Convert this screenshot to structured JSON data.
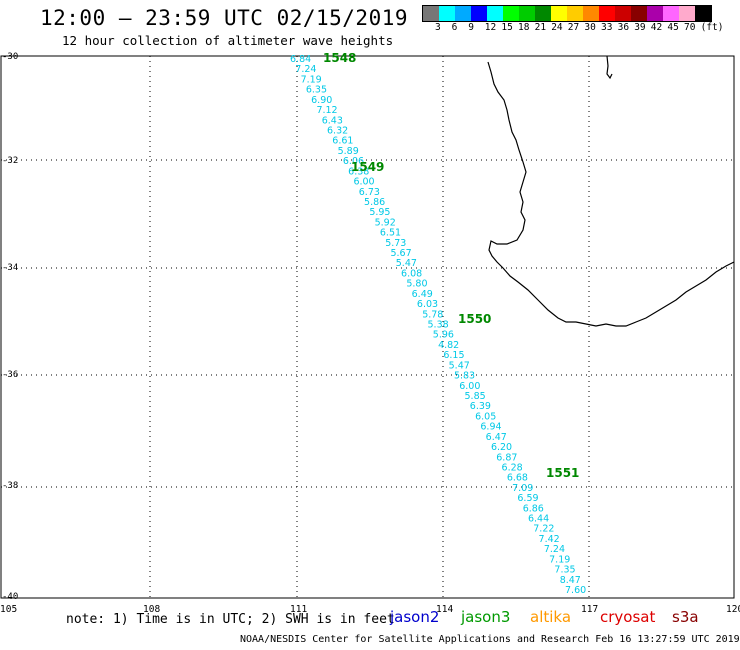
{
  "header": {
    "title": "12:00 – 23:59 UTC 02/15/2019",
    "subtitle": "12 hour collection of altimeter wave heights"
  },
  "color_scale": {
    "colors": [
      "#777777",
      "#00ffff",
      "#00aaff",
      "#0000ff",
      "#00ffff",
      "#00ff00",
      "#00cc00",
      "#008800",
      "#ffff00",
      "#ffcc00",
      "#ff8800",
      "#ff0000",
      "#cc0000",
      "#880000",
      "#aa00aa",
      "#ff66ff",
      "#ffaacc",
      "#000000"
    ],
    "labels": [
      "3",
      "6",
      "9",
      "12",
      "15",
      "18",
      "21",
      "24",
      "27",
      "30",
      "33",
      "36",
      "39",
      "42",
      "45",
      "70",
      "(ft)"
    ]
  },
  "map": {
    "lat_ticks": [
      "-30",
      "-32",
      "-34",
      "-36",
      "-38",
      "-40"
    ],
    "lon_ticks": [
      "105",
      "108",
      "111",
      "114",
      "117",
      "120"
    ],
    "swh_values": [
      "6.84",
      "7.24",
      "7.19",
      "6.35",
      "6.90",
      "7.12",
      "6.43",
      "6.32",
      "6.61",
      "5.89",
      "6.06",
      "6.38",
      "6.00",
      "6.73",
      "5.86",
      "5.95",
      "5.92",
      "6.51",
      "5.73",
      "5.67",
      "5.47",
      "6.08",
      "5.80",
      "6.49",
      "6.03",
      "5.78",
      "5.38",
      "5.96",
      "4.82",
      "6.15",
      "5.47",
      "5.83",
      "6.00",
      "5.85",
      "6.39",
      "6.05",
      "6.94",
      "6.47",
      "6.20",
      "6.87",
      "6.28",
      "6.68",
      "7.09",
      "6.59",
      "6.86",
      "6.44",
      "7.22",
      "7.42",
      "7.24",
      "7.19",
      "7.35",
      "8.47",
      "7.60"
    ],
    "times": [
      "1548",
      "1549",
      "1550",
      "1551"
    ]
  },
  "footer": {
    "note": "note:  1) Time is in UTC;  2) SWH is in feet",
    "satellites": [
      {
        "name": "jason2",
        "color": "#0000cc"
      },
      {
        "name": "jason3",
        "color": "#009900"
      },
      {
        "name": "altika",
        "color": "#ff9900"
      },
      {
        "name": "cryosat",
        "color": "#dd0000"
      },
      {
        "name": "s3a",
        "color": "#880000"
      }
    ],
    "credit": "NOAA/NESDIS Center for Satellite Applications and Research    Feb 16 13:27:59 UTC 2019"
  }
}
